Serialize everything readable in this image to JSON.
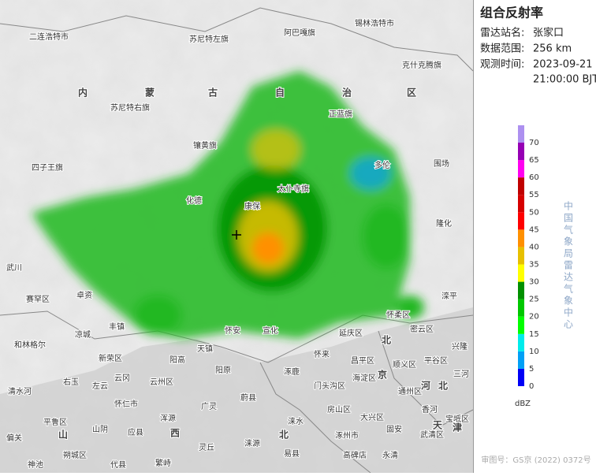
{
  "map": {
    "places": [
      "二连浩特市",
      "锡林浩特市",
      "苏尼特左旗",
      "阿巴嘎旗",
      "克什克腾旗",
      "内",
      "蒙",
      "古",
      "自",
      "治",
      "区",
      "苏尼特右旗",
      "正蓝旗",
      "镶黄旗",
      "四子王旗",
      "多伦",
      "围场",
      "化德",
      "康保",
      "隆化",
      "太仆寺旗",
      "武川",
      "赛罕区",
      "卓资",
      "丰镇",
      "凉城",
      "和林格尔",
      "新荣区",
      "阳高",
      "天镇",
      "怀安",
      "宣化",
      "延庆区",
      "怀柔区",
      "密云区",
      "滦平",
      "兴隆",
      "平谷区",
      "昌平区",
      "北",
      "京",
      "海淀区",
      "门头沟区",
      "顺义区",
      "通州区",
      "河",
      "北",
      "三河",
      "阳原",
      "怀来",
      "涿鹿",
      "蔚县",
      "右玉",
      "左云",
      "云冈",
      "云州区",
      "怀仁市",
      "清水河",
      "浑源",
      "广灵",
      "房山区",
      "大兴区",
      "固安",
      "香河",
      "宝坻区",
      "武清区",
      "天",
      "津",
      "涞水",
      "涿州市",
      "山阴",
      "应县",
      "平鲁区",
      "山",
      "西",
      "灵丘",
      "涞源",
      "易县",
      "北",
      "高碑店",
      "永清",
      "偏关",
      "朔城区",
      "繁峙",
      "代县",
      "神池"
    ]
  },
  "panel": {
    "title": "组合反射率",
    "fields": [
      {
        "label": "雷达站名:",
        "value": "张家口"
      },
      {
        "label": "数据范围:",
        "value": "256 km"
      },
      {
        "label": "观测时间:",
        "value": "2023-09-21",
        "value2": "21:00:00 BJT"
      }
    ]
  },
  "legend": {
    "unit": "dBZ",
    "credit": "中国气象局雷达气象中心",
    "levels": [
      {
        "value": 0,
        "color": "#0000f6"
      },
      {
        "value": 5,
        "color": "#01a0f6"
      },
      {
        "value": 10,
        "color": "#00ecec"
      },
      {
        "value": 15,
        "color": "#01ff00"
      },
      {
        "value": 20,
        "color": "#00c800"
      },
      {
        "value": 25,
        "color": "#019000"
      },
      {
        "value": 30,
        "color": "#ffff00"
      },
      {
        "value": 35,
        "color": "#e7c000"
      },
      {
        "value": 40,
        "color": "#ff9000"
      },
      {
        "value": 45,
        "color": "#ff0000"
      },
      {
        "value": 50,
        "color": "#d60000"
      },
      {
        "value": 55,
        "color": "#c00000"
      },
      {
        "value": 60,
        "color": "#ff00f0"
      },
      {
        "value": 65,
        "color": "#9600b4"
      },
      {
        "value": 70,
        "color": "#ad90f0"
      }
    ]
  },
  "footer": "审图号：GS京 (2022) 0372号"
}
